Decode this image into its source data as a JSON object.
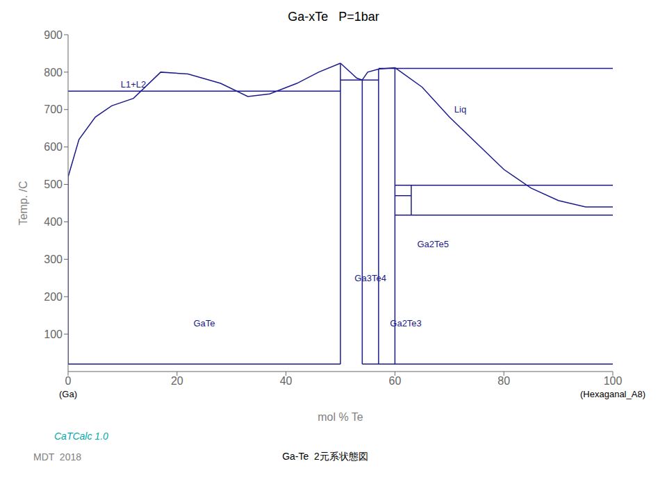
{
  "chart_data": {
    "type": "line",
    "title": "Ga-xTe   P=1bar",
    "xlabel": "mol %  Te",
    "ylabel": "Temp.  /C",
    "xlim": [
      0,
      100
    ],
    "ylim": [
      0,
      900
    ],
    "xticks": [
      0,
      20,
      40,
      60,
      80,
      100
    ],
    "yticks": [
      100,
      200,
      300,
      400,
      500,
      600,
      700,
      800,
      900
    ],
    "grid": false,
    "color": "#1a1a8c",
    "series": [
      {
        "x": [
          0,
          2,
          5,
          8,
          12,
          17,
          22,
          28,
          33,
          37,
          42,
          46,
          50
        ],
        "values": [
          520,
          620,
          680,
          710,
          730,
          800,
          795,
          770,
          735,
          742,
          770,
          800,
          824
        ]
      },
      {
        "x": [
          50,
          53,
          54,
          55,
          57,
          60
        ],
        "values": [
          824,
          784,
          779,
          800,
          808,
          812
        ]
      },
      {
        "x": [
          60,
          65,
          70,
          75,
          80,
          85,
          90,
          95,
          100
        ],
        "values": [
          812,
          760,
          680,
          610,
          540,
          490,
          457,
          440,
          440
        ]
      },
      {
        "x": [
          0,
          0
        ],
        "values": [
          20,
          520
        ]
      },
      {
        "x": [
          0,
          50
        ],
        "values": [
          749,
          749
        ]
      },
      {
        "x": [
          50,
          50
        ],
        "values": [
          20,
          824
        ]
      },
      {
        "x": [
          54,
          54
        ],
        "values": [
          20,
          779
        ]
      },
      {
        "x": [
          57,
          57
        ],
        "values": [
          20,
          808
        ]
      },
      {
        "x": [
          50,
          57
        ],
        "values": [
          779,
          779
        ]
      },
      {
        "x": [
          60,
          60
        ],
        "values": [
          20,
          810
        ]
      },
      {
        "x": [
          57,
          100
        ],
        "values": [
          810,
          810
        ]
      },
      {
        "x": [
          60,
          100
        ],
        "values": [
          498,
          498
        ]
      },
      {
        "x": [
          60,
          100
        ],
        "values": [
          418,
          418
        ]
      },
      {
        "x": [
          63,
          63
        ],
        "values": [
          418,
          498
        ]
      },
      {
        "x": [
          60,
          63
        ],
        "values": [
          470,
          470
        ]
      },
      {
        "x": [
          0,
          50
        ],
        "values": [
          20,
          20
        ]
      },
      {
        "x": [
          54,
          57
        ],
        "values": [
          20,
          20
        ]
      },
      {
        "x": [
          57,
          100
        ],
        "values": [
          20,
          20
        ]
      }
    ],
    "annotations": [
      {
        "text": "GaTe",
        "x": 25,
        "y": 130
      },
      {
        "text": "Ga3Te4",
        "x": 55.5,
        "y": 250
      },
      {
        "text": "Ga2Te3",
        "x": 62,
        "y": 130
      },
      {
        "text": "Ga2Te5",
        "x": 67,
        "y": 340
      },
      {
        "text": "L1+L2",
        "x": 12,
        "y": 768
      },
      {
        "text": "Liq",
        "x": 72,
        "y": 700
      },
      {
        "text": "(Ga)",
        "x": 0,
        "y": -60,
        "color": "black"
      },
      {
        "text": "(Hexaganal_A8)",
        "x": 100,
        "y": -60,
        "color": "black"
      }
    ],
    "footer": [
      "MDT  2018",
      "Ga-Te  2元系状態図"
    ],
    "caption": {
      "text": "CaTCalc 1.0",
      "color": "#00aaaa"
    }
  }
}
